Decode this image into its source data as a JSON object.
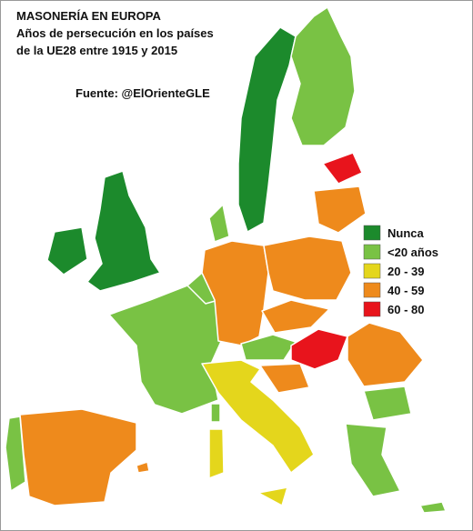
{
  "header": {
    "lines": [
      "MASONERÍA EN EUROPA",
      "Años de persecución en los países",
      "de la UE28 entre 1915 y 2015"
    ],
    "source": "Fuente: @ElOrienteGLE"
  },
  "legend": [
    {
      "label": "Nunca",
      "color": "#1c8a2c"
    },
    {
      "label": "<20 años",
      "color": "#79c244"
    },
    {
      "label": "20 - 39",
      "color": "#e4d61c"
    },
    {
      "label": "40 - 59",
      "color": "#ee8a1c"
    },
    {
      "label": "60 - 80",
      "color": "#e8141c"
    }
  ]
}
